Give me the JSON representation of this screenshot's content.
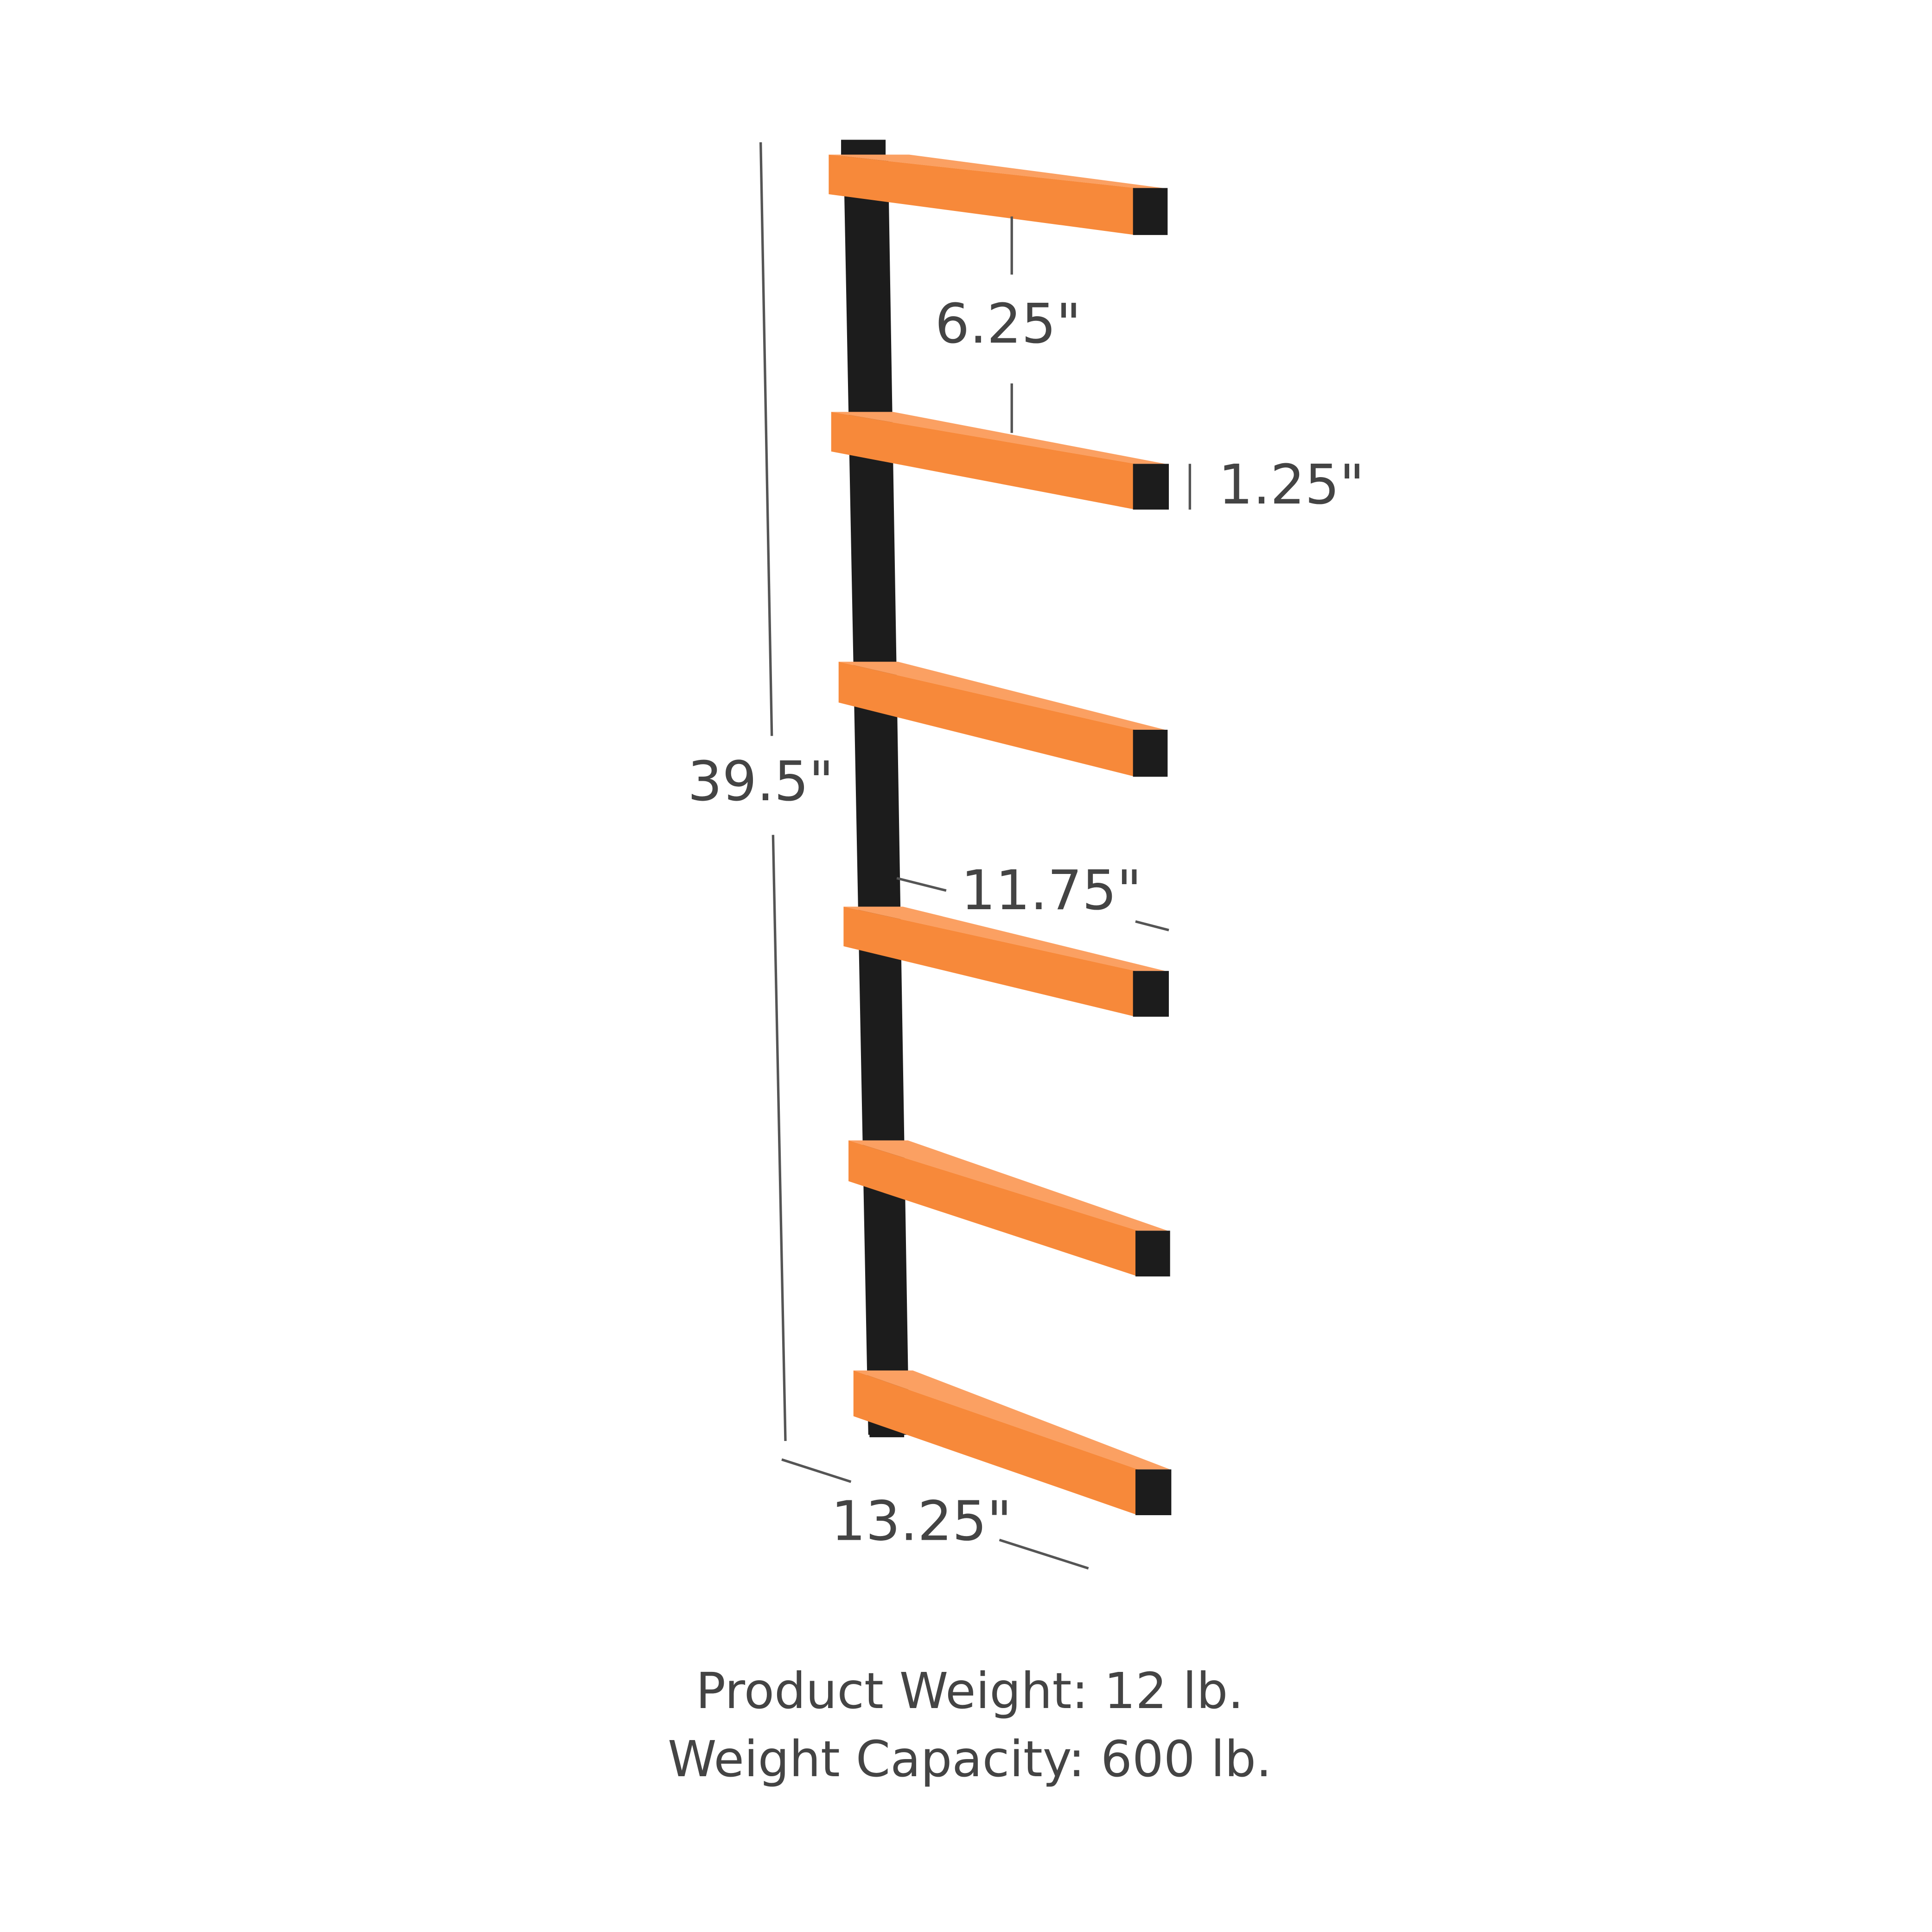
{
  "dimensions": {
    "arm_spacing": "6.25\"",
    "arm_thickness": "1.25\"",
    "height": "39.5\"",
    "arm_length": "11.75\"",
    "depth": "13.25\""
  },
  "footer": {
    "product_weight": "Product Weight: 12 lb.",
    "weight_capacity": "Weight Capacity: 600 lb."
  }
}
